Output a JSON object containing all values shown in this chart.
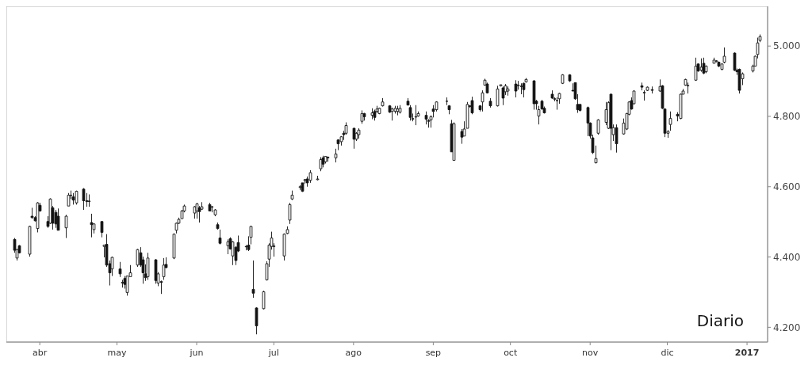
{
  "chart_data": {
    "type": "candlestick",
    "title": "Diario",
    "x": [
      "2016-03-22",
      "2016-03-23",
      "2016-03-24",
      "2016-03-28",
      "2016-03-29",
      "2016-03-30",
      "2016-03-31",
      "2016-04-01",
      "2016-04-04",
      "2016-04-05",
      "2016-04-06",
      "2016-04-07",
      "2016-04-08",
      "2016-04-11",
      "2016-04-12",
      "2016-04-13",
      "2016-04-14",
      "2016-04-15",
      "2016-04-18",
      "2016-04-19",
      "2016-04-20",
      "2016-04-21",
      "2016-04-22",
      "2016-04-25",
      "2016-04-26",
      "2016-04-27",
      "2016-04-28",
      "2016-04-29",
      "2016-05-02",
      "2016-05-03",
      "2016-05-04",
      "2016-05-05",
      "2016-05-06",
      "2016-05-09",
      "2016-05-10",
      "2016-05-11",
      "2016-05-12",
      "2016-05-13",
      "2016-05-16",
      "2016-05-17",
      "2016-05-18",
      "2016-05-19",
      "2016-05-20",
      "2016-05-23",
      "2016-05-24",
      "2016-05-25",
      "2016-05-26",
      "2016-05-27",
      "2016-05-31",
      "2016-06-01",
      "2016-06-02",
      "2016-06-03",
      "2016-06-06",
      "2016-06-07",
      "2016-06-08",
      "2016-06-09",
      "2016-06-10",
      "2016-06-13",
      "2016-06-14",
      "2016-06-15",
      "2016-06-16",
      "2016-06-17",
      "2016-06-20",
      "2016-06-21",
      "2016-06-22",
      "2016-06-23",
      "2016-06-24",
      "2016-06-27",
      "2016-06-28",
      "2016-06-29",
      "2016-06-30",
      "2016-07-01",
      "2016-07-05",
      "2016-07-06",
      "2016-07-07",
      "2016-07-08",
      "2016-07-11",
      "2016-07-12",
      "2016-07-13",
      "2016-07-14",
      "2016-07-15",
      "2016-07-18",
      "2016-07-19",
      "2016-07-20",
      "2016-07-21",
      "2016-07-22",
      "2016-07-25",
      "2016-07-26",
      "2016-07-27",
      "2016-07-28",
      "2016-07-29",
      "2016-08-01",
      "2016-08-02",
      "2016-08-03",
      "2016-08-04",
      "2016-08-05",
      "2016-08-08",
      "2016-08-09",
      "2016-08-10",
      "2016-08-11",
      "2016-08-12",
      "2016-08-15",
      "2016-08-16",
      "2016-08-17",
      "2016-08-18",
      "2016-08-19",
      "2016-08-22",
      "2016-08-23",
      "2016-08-24",
      "2016-08-25",
      "2016-08-26",
      "2016-08-29",
      "2016-08-30",
      "2016-08-31",
      "2016-09-01",
      "2016-09-02",
      "2016-09-06",
      "2016-09-07",
      "2016-09-08",
      "2016-09-09",
      "2016-09-12",
      "2016-09-13",
      "2016-09-14",
      "2016-09-15",
      "2016-09-16",
      "2016-09-19",
      "2016-09-20",
      "2016-09-21",
      "2016-09-22",
      "2016-09-23",
      "2016-09-26",
      "2016-09-27",
      "2016-09-28",
      "2016-09-29",
      "2016-09-30",
      "2016-10-03",
      "2016-10-04",
      "2016-10-05",
      "2016-10-06",
      "2016-10-07",
      "2016-10-10",
      "2016-10-11",
      "2016-10-12",
      "2016-10-13",
      "2016-10-14",
      "2016-10-17",
      "2016-10-18",
      "2016-10-19",
      "2016-10-20",
      "2016-10-21",
      "2016-10-24",
      "2016-10-25",
      "2016-10-26",
      "2016-10-27",
      "2016-10-28",
      "2016-10-31",
      "2016-11-01",
      "2016-11-02",
      "2016-11-03",
      "2016-11-04",
      "2016-11-07",
      "2016-11-08",
      "2016-11-09",
      "2016-11-10",
      "2016-11-11",
      "2016-11-14",
      "2016-11-15",
      "2016-11-16",
      "2016-11-17",
      "2016-11-18",
      "2016-11-21",
      "2016-11-22",
      "2016-11-23",
      "2016-11-25",
      "2016-11-28",
      "2016-11-29",
      "2016-11-30",
      "2016-12-01",
      "2016-12-02",
      "2016-12-05",
      "2016-12-06",
      "2016-12-07",
      "2016-12-08",
      "2016-12-09",
      "2016-12-12",
      "2016-12-13",
      "2016-12-14",
      "2016-12-15",
      "2016-12-16",
      "2016-12-19",
      "2016-12-20",
      "2016-12-21",
      "2016-12-22",
      "2016-12-23",
      "2016-12-27",
      "2016-12-28",
      "2016-12-29",
      "2016-12-30",
      "2017-01-03",
      "2017-01-04",
      "2017-01-05",
      "2017-01-06"
    ],
    "ohlc": [
      [
        4450,
        4454,
        4412,
        4419
      ],
      [
        4397,
        4423,
        4390,
        4421
      ],
      [
        4432,
        4434,
        4410,
        4412
      ],
      [
        4408,
        4489,
        4401,
        4487
      ],
      [
        4516,
        4540,
        4509,
        4512
      ],
      [
        4512,
        4516,
        4501,
        4503
      ],
      [
        4481,
        4556,
        4470,
        4554
      ],
      [
        4547,
        4554,
        4529,
        4531
      ],
      [
        4501,
        4516,
        4483,
        4487
      ],
      [
        4496,
        4567,
        4494,
        4565
      ],
      [
        4540,
        4545,
        4478,
        4496
      ],
      [
        4527,
        4534,
        4483,
        4494
      ],
      [
        4516,
        4538,
        4476,
        4476
      ],
      [
        4483,
        4520,
        4454,
        4516
      ],
      [
        4545,
        4582,
        4545,
        4576
      ],
      [
        4575,
        4589,
        4565,
        4576
      ],
      [
        4571,
        4582,
        4549,
        4562
      ],
      [
        4554,
        4589,
        4549,
        4587
      ],
      [
        4593,
        4596,
        4534,
        4560
      ],
      [
        4560,
        4582,
        4543,
        4558
      ],
      [
        4558,
        4578,
        4543,
        4559
      ],
      [
        4498,
        4523,
        4456,
        4492
      ],
      [
        4478,
        4496,
        4467,
        4494
      ],
      [
        4501,
        4501,
        4456,
        4470
      ],
      [
        4430,
        4434,
        4399,
        4434
      ],
      [
        4436,
        4465,
        4372,
        4377
      ],
      [
        4381,
        4390,
        4319,
        4355
      ],
      [
        4366,
        4401,
        4346,
        4399
      ],
      [
        4366,
        4386,
        4343,
        4352
      ],
      [
        4326,
        4335,
        4313,
        4328
      ],
      [
        4339,
        4346,
        4310,
        4322
      ],
      [
        4299,
        4346,
        4290,
        4346
      ],
      [
        4344,
        4377,
        4344,
        4355
      ],
      [
        4377,
        4423,
        4372,
        4421
      ],
      [
        4412,
        4428,
        4372,
        4377
      ],
      [
        4392,
        4401,
        4324,
        4355
      ],
      [
        4352,
        4379,
        4332,
        4341
      ],
      [
        4344,
        4412,
        4335,
        4397
      ],
      [
        4392,
        4394,
        4324,
        4333
      ],
      [
        4326,
        4357,
        4317,
        4352
      ],
      [
        4330,
        4333,
        4295,
        4328
      ],
      [
        4344,
        4397,
        4335,
        4377
      ],
      [
        4379,
        4399,
        4368,
        4370
      ],
      [
        4397,
        4467,
        4394,
        4465
      ],
      [
        4476,
        4498,
        4467,
        4496
      ],
      [
        4496,
        4512,
        4494,
        4507
      ],
      [
        4509,
        4534,
        4509,
        4531
      ],
      [
        4531,
        4549,
        4527,
        4545
      ],
      [
        4525,
        4545,
        4509,
        4543
      ],
      [
        4531,
        4554,
        4509,
        4551
      ],
      [
        4540,
        4545,
        4498,
        4529
      ],
      [
        4536,
        4556,
        4534,
        4543
      ],
      [
        4549,
        4554,
        4531,
        4531
      ],
      [
        4543,
        4545,
        4527,
        4542
      ],
      [
        4520,
        4536,
        4516,
        4534
      ],
      [
        4492,
        4498,
        4478,
        4481
      ],
      [
        4454,
        4478,
        4436,
        4439
      ],
      [
        4432,
        4450,
        4408,
        4443
      ],
      [
        4452,
        4456,
        4421,
        4423
      ],
      [
        4403,
        4445,
        4377,
        4443
      ],
      [
        4428,
        4430,
        4377,
        4390
      ],
      [
        4441,
        4461,
        4414,
        4417
      ],
      [
        4430,
        4434,
        4419,
        4429
      ],
      [
        4434,
        4459,
        4417,
        4421
      ],
      [
        4456,
        4489,
        4436,
        4487
      ],
      [
        4308,
        4390,
        4284,
        4297
      ],
      [
        4255,
        4257,
        4180,
        4204
      ],
      [
        4253,
        4304,
        4251,
        4301
      ],
      [
        4335,
        4388,
        4333,
        4381
      ],
      [
        4394,
        4439,
        4372,
        4434
      ],
      [
        4430,
        4472,
        4421,
        4454
      ],
      [
        4431,
        4439,
        4401,
        4430
      ],
      [
        4403,
        4467,
        4390,
        4465
      ],
      [
        4467,
        4487,
        4465,
        4478
      ],
      [
        4505,
        4554,
        4494,
        4549
      ],
      [
        4565,
        4589,
        4562,
        4576
      ],
      [
        4598,
        4604,
        4591,
        4600
      ],
      [
        4611,
        4611,
        4585,
        4587
      ],
      [
        4618,
        4622,
        4609,
        4620
      ],
      [
        4622,
        4629,
        4600,
        4611
      ],
      [
        4618,
        4647,
        4611,
        4640
      ],
      [
        4620,
        4631,
        4618,
        4622
      ],
      [
        4651,
        4684,
        4644,
        4677
      ],
      [
        4682,
        4688,
        4655,
        4664
      ],
      [
        4671,
        4686,
        4666,
        4686
      ],
      [
        4684,
        4686,
        4671,
        4682
      ],
      [
        4682,
        4708,
        4669,
        4693
      ],
      [
        4733,
        4735,
        4704,
        4722
      ],
      [
        4728,
        4744,
        4717,
        4742
      ],
      [
        4752,
        4759,
        4733,
        4748
      ],
      [
        4752,
        4783,
        4748,
        4774
      ],
      [
        4766,
        4768,
        4708,
        4735
      ],
      [
        4735,
        4755,
        4730,
        4752
      ],
      [
        4748,
        4766,
        4737,
        4761
      ],
      [
        4786,
        4817,
        4779,
        4808
      ],
      [
        4808,
        4810,
        4788,
        4799
      ],
      [
        4803,
        4823,
        4792,
        4810
      ],
      [
        4814,
        4819,
        4788,
        4797
      ],
      [
        4814,
        4830,
        4810,
        4821
      ],
      [
        4808,
        4825,
        4806,
        4823
      ],
      [
        4830,
        4852,
        4828,
        4841
      ],
      [
        4830,
        4832,
        4810,
        4812
      ],
      [
        4814,
        4825,
        4788,
        4821
      ],
      [
        4814,
        4830,
        4808,
        4823
      ],
      [
        4814,
        4830,
        4803,
        4821
      ],
      [
        4812,
        4832,
        4808,
        4823
      ],
      [
        4843,
        4852,
        4832,
        4832
      ],
      [
        4825,
        4832,
        4788,
        4797
      ],
      [
        4792,
        4808,
        4786,
        4794
      ],
      [
        4798,
        4832,
        4775,
        4799
      ],
      [
        4801,
        4814,
        4799,
        4808
      ],
      [
        4803,
        4814,
        4777,
        4792
      ],
      [
        4788,
        4792,
        4768,
        4786
      ],
      [
        4790,
        4803,
        4768,
        4799
      ],
      [
        4821,
        4832,
        4797,
        4814
      ],
      [
        4819,
        4843,
        4814,
        4841
      ],
      [
        4843,
        4854,
        4832,
        4843
      ],
      [
        4830,
        4832,
        4806,
        4819
      ],
      [
        4779,
        4790,
        4699,
        4699
      ],
      [
        4675,
        4783,
        4675,
        4779
      ],
      [
        4757,
        4764,
        4722,
        4741
      ],
      [
        4744,
        4786,
        4744,
        4764
      ],
      [
        4766,
        4841,
        4766,
        4834
      ],
      [
        4830,
        4832,
        4825,
        4828
      ],
      [
        4845,
        4856,
        4806,
        4810
      ],
      [
        4830,
        4832,
        4814,
        4819
      ],
      [
        4841,
        4874,
        4814,
        4867
      ],
      [
        4889,
        4907,
        4887,
        4903
      ],
      [
        4892,
        4896,
        4865,
        4867
      ],
      [
        4843,
        4852,
        4825,
        4830
      ],
      [
        4830,
        4887,
        4828,
        4878
      ],
      [
        4887,
        4890,
        4885,
        4890
      ],
      [
        4881,
        4885,
        4832,
        4852
      ],
      [
        4870,
        4892,
        4861,
        4887
      ],
      [
        4872,
        4885,
        4859,
        4878
      ],
      [
        4892,
        4903,
        4854,
        4872
      ],
      [
        4887,
        4901,
        4876,
        4889
      ],
      [
        4886,
        4894,
        4863,
        4885
      ],
      [
        4894,
        4896,
        4854,
        4876
      ],
      [
        4898,
        4909,
        4896,
        4905
      ],
      [
        4901,
        4903,
        4819,
        4836
      ],
      [
        4843,
        4847,
        4819,
        4836
      ],
      [
        4801,
        4830,
        4777,
        4819
      ],
      [
        4843,
        4847,
        4819,
        4821
      ],
      [
        4823,
        4828,
        4808,
        4810
      ],
      [
        4863,
        4874,
        4850,
        4852
      ],
      [
        4850,
        4854,
        4843,
        4849
      ],
      [
        4845,
        4854,
        4819,
        4845
      ],
      [
        4850,
        4867,
        4836,
        4865
      ],
      [
        4894,
        4920,
        4892,
        4918
      ],
      [
        4918,
        4920,
        4898,
        4901
      ],
      [
        4874,
        4894,
        4872,
        4872
      ],
      [
        4896,
        4896,
        4847,
        4850
      ],
      [
        4834,
        4863,
        4810,
        4819
      ],
      [
        4834,
        4834,
        4814,
        4817
      ],
      [
        4825,
        4828,
        4744,
        4781
      ],
      [
        4781,
        4783,
        4737,
        4744
      ],
      [
        4739,
        4748,
        4693,
        4697
      ],
      [
        4668,
        4717,
        4666,
        4680
      ],
      [
        4752,
        4792,
        4748,
        4790
      ],
      [
        4783,
        4841,
        4775,
        4819
      ],
      [
        4766,
        4843,
        4764,
        4839
      ],
      [
        4863,
        4865,
        4704,
        4766
      ],
      [
        4748,
        4777,
        4730,
        4768
      ],
      [
        4768,
        4777,
        4697,
        4722
      ],
      [
        4750,
        4794,
        4748,
        4781
      ],
      [
        4764,
        4810,
        4761,
        4808
      ],
      [
        4806,
        4843,
        4803,
        4841
      ],
      [
        4845,
        4854,
        4819,
        4821
      ],
      [
        4836,
        4874,
        4834,
        4872
      ],
      [
        4887,
        4896,
        4874,
        4883
      ],
      [
        4868,
        4874,
        4845,
        4867
      ],
      [
        4874,
        4885,
        4872,
        4883
      ],
      [
        4876,
        4885,
        4865,
        4874
      ],
      [
        4872,
        4905,
        4870,
        4885
      ],
      [
        4887,
        4889,
        4821,
        4823
      ],
      [
        4821,
        4823,
        4741,
        4752
      ],
      [
        4752,
        4761,
        4739,
        4757
      ],
      [
        4777,
        4814,
        4759,
        4794
      ],
      [
        4806,
        4812,
        4786,
        4801
      ],
      [
        4794,
        4865,
        4792,
        4863
      ],
      [
        4863,
        4878,
        4863,
        4872
      ],
      [
        4889,
        4907,
        4887,
        4905
      ],
      [
        4888,
        4896,
        4865,
        4887
      ],
      [
        4903,
        4967,
        4901,
        4943
      ],
      [
        4949,
        4951,
        4927,
        4929
      ],
      [
        4931,
        4965,
        4927,
        4940
      ],
      [
        4951,
        4967,
        4920,
        4923
      ],
      [
        4927,
        4945,
        4923,
        4943
      ],
      [
        4951,
        4967,
        4951,
        4960
      ],
      [
        4956,
        4960,
        4954,
        4958
      ],
      [
        4954,
        4956,
        4940,
        4943
      ],
      [
        4934,
        4951,
        4931,
        4949
      ],
      [
        4954,
        4996,
        4951,
        4971
      ],
      [
        4980,
        4982,
        4929,
        4931
      ],
      [
        4931,
        4936,
        4918,
        4927
      ],
      [
        4934,
        4936,
        4865,
        4874
      ],
      [
        4907,
        4925,
        4889,
        4921
      ],
      [
        4929,
        4947,
        4925,
        4943
      ],
      [
        4943,
        4973,
        4943,
        4971
      ],
      [
        4976,
        5024,
        4965,
        5009
      ],
      [
        5016,
        5033,
        5011,
        5027
      ]
    ],
    "xlim": [
      "2016-03-19",
      "2017-01-09"
    ],
    "xticks": [
      {
        "value": "2016-04-01",
        "label": "abr"
      },
      {
        "value": "2016-05-01",
        "label": "may"
      },
      {
        "value": "2016-06-01",
        "label": "jun"
      },
      {
        "value": "2016-07-01",
        "label": "jul"
      },
      {
        "value": "2016-08-01",
        "label": "ago"
      },
      {
        "value": "2016-09-01",
        "label": "sep"
      },
      {
        "value": "2016-10-01",
        "label": "oct"
      },
      {
        "value": "2016-11-01",
        "label": "nov"
      },
      {
        "value": "2016-12-01",
        "label": "dic"
      },
      {
        "value": "2017-01-01",
        "label": "2017"
      }
    ],
    "ylim": [
      4158,
      5113
    ],
    "yticks": [
      {
        "value": 4200,
        "label": "4.200"
      },
      {
        "value": 4400,
        "label": "4.400"
      },
      {
        "value": 4600,
        "label": "4.600"
      },
      {
        "value": 4800,
        "label": "4.800"
      },
      {
        "value": 5000,
        "label": "5.000"
      }
    ]
  }
}
